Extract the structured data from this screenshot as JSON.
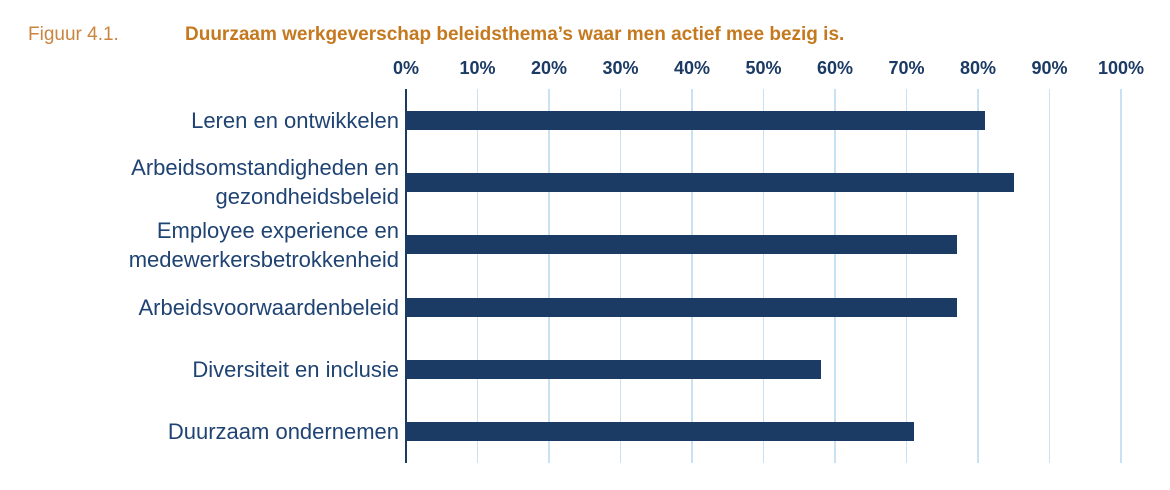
{
  "header": {
    "figure_label": "Figuur 4.1.",
    "title": "Duurzaam werkgeverschap beleidsthema’s waar men actief mee bezig is."
  },
  "chart_data": {
    "type": "bar",
    "orientation": "horizontal",
    "title": "Duurzaam werkgeverschap beleidsthema’s waar men actief mee bezig is.",
    "categories": [
      "Leren en ontwikkelen",
      "Arbeidsomstandigheden en gezondheidsbeleid",
      "Employee experience en medewerkersbetrokkenheid",
      "Arbeidsvoorwaardenbeleid",
      "Diversiteit en inclusie",
      "Duurzaam ondernemen"
    ],
    "values": [
      81,
      85,
      77,
      77,
      58,
      71
    ],
    "value_unit": "%",
    "xlim": [
      0,
      100
    ],
    "x_tick_interval": 10,
    "x_tick_labels": [
      "0%",
      "10%",
      "20%",
      "30%",
      "40%",
      "50%",
      "60%",
      "70%",
      "80%",
      "90%",
      "100%"
    ],
    "grid": true,
    "legend": false,
    "colors": {
      "bar": "#1b3a64",
      "gridline": "#c8e2f4",
      "axis_line": "#1b3a64",
      "tick_label": "#1b3a64",
      "category_label": "#1f4373",
      "figure_label": "#ca8540",
      "title": "#c5791f"
    }
  }
}
